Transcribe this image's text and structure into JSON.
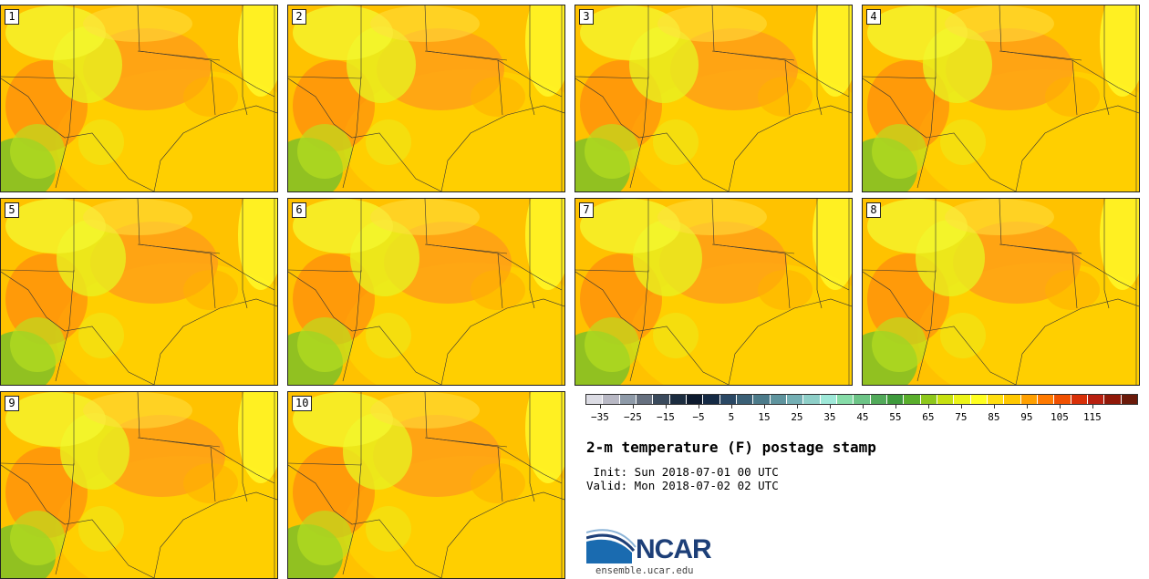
{
  "product": {
    "title": "2-m temperature (F) postage stamp",
    "init": " Init: Sun 2018-07-01 00 UTC",
    "valid": "Valid: Mon 2018-07-02 02 UTC"
  },
  "members": [
    "1",
    "2",
    "3",
    "4",
    "5",
    "6",
    "7",
    "8",
    "9",
    "10"
  ],
  "colorbar": {
    "colors": [
      "#dcdce4",
      "#b8b8c4",
      "#8e9aa8",
      "#66707f",
      "#3a4a5c",
      "#1c2d40",
      "#0d1a2e",
      "#152a44",
      "#2a4864",
      "#3b6076",
      "#4c7b8a",
      "#5f949e",
      "#74afb4",
      "#8ecfc8",
      "#9ee8d8",
      "#86dca8",
      "#6cc486",
      "#52aa5a",
      "#3e9a3c",
      "#5aae2c",
      "#8ec81c",
      "#c6e010",
      "#ecf418",
      "#ffff20",
      "#ffde10",
      "#ffc800",
      "#ffa000",
      "#ff7a00",
      "#f05000",
      "#d83008",
      "#b82010",
      "#901808",
      "#6a1a0a"
    ],
    "tick_values": [
      "-35",
      "-25",
      "-15",
      "-5",
      "5",
      "15",
      "25",
      "35",
      "45",
      "55",
      "65",
      "75",
      "85",
      "95",
      "105",
      "115"
    ]
  },
  "logo": {
    "name": "NCAR",
    "url": "ensemble.ucar.edu"
  }
}
